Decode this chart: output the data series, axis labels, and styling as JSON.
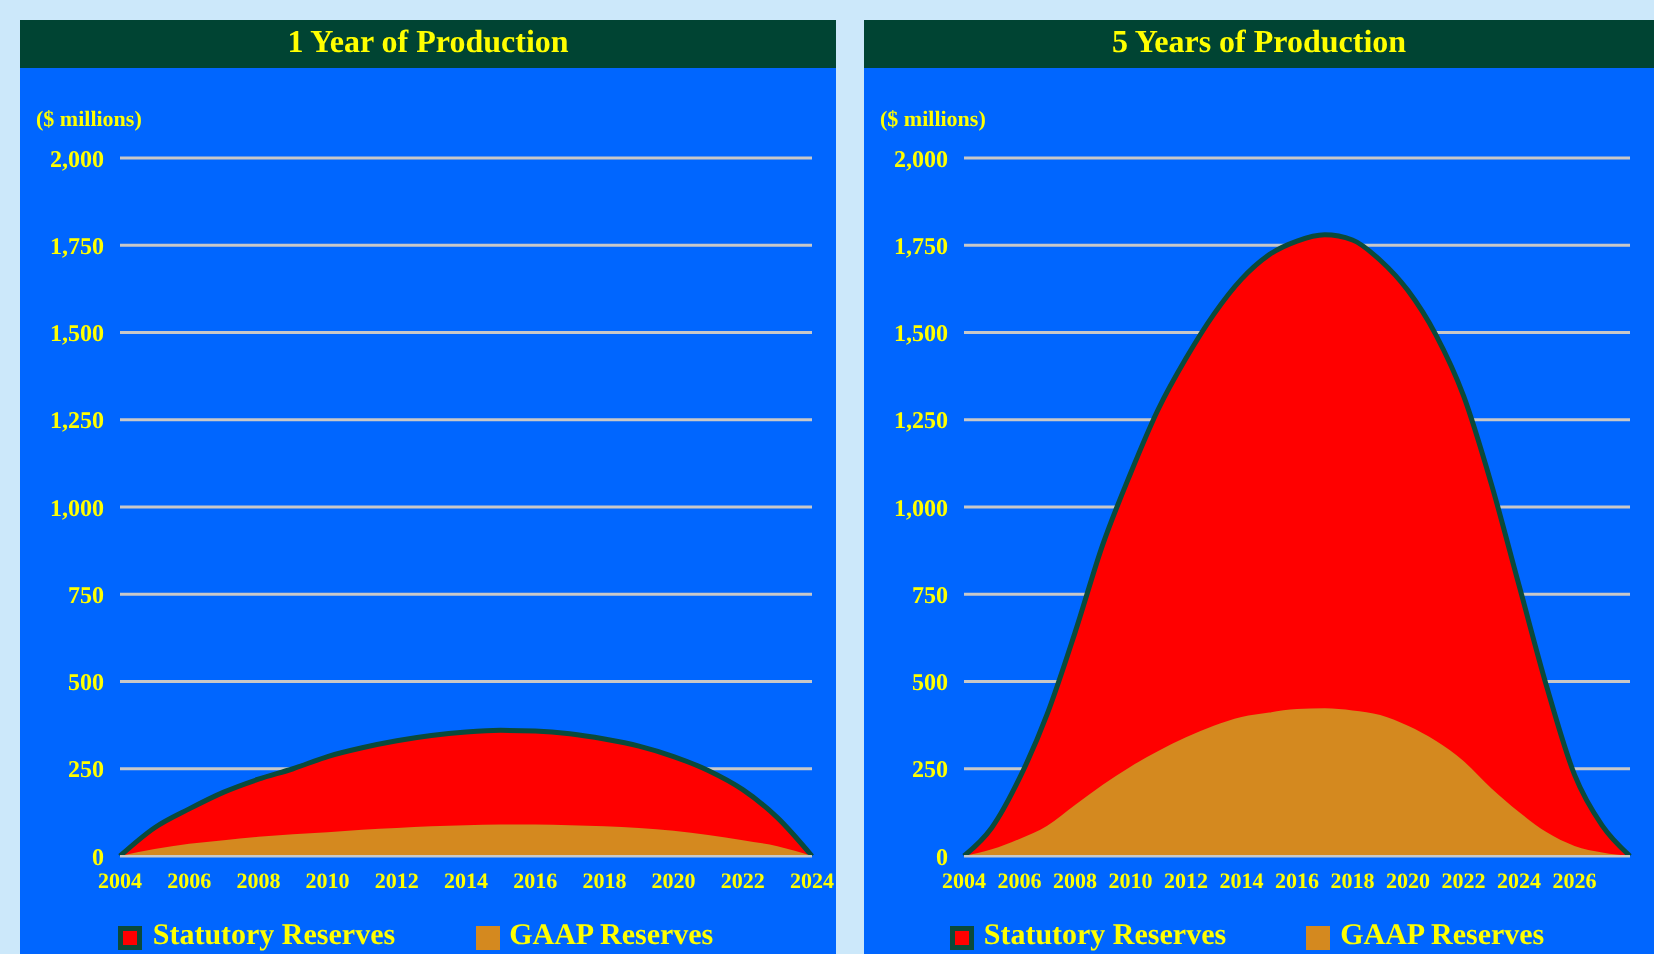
{
  "chart_data": [
    {
      "type": "area",
      "title": "1 Year of Production",
      "ylabel": "($ millions)",
      "categories": [
        "2004",
        null,
        "2006",
        null,
        "2008",
        null,
        "2010",
        null,
        "2012",
        null,
        "2014",
        null,
        "2016",
        null,
        "2018",
        null,
        "2020",
        null,
        "2022",
        null,
        "2024"
      ],
      "series": [
        {
          "name": "Statutory Reserves",
          "color": "#ff0000",
          "values": [
            0,
            81,
            135,
            183,
            220,
            250,
            285,
            310,
            330,
            345,
            355,
            360,
            358,
            350,
            335,
            315,
            285,
            245,
            190,
            110,
            0
          ]
        },
        {
          "name": "GAAP Reserves",
          "color": "#d4891f",
          "values": [
            0,
            20,
            35,
            45,
            55,
            62,
            68,
            75,
            80,
            85,
            88,
            90,
            90,
            88,
            85,
            80,
            72,
            60,
            45,
            28,
            0
          ]
        }
      ],
      "ylim": [
        0,
        2000
      ],
      "yticks": [
        0,
        250,
        500,
        750,
        {
          "value": 1000,
          "label": "1,000"
        },
        {
          "value": 1250,
          "label": "1,250"
        },
        {
          "value": 1500,
          "label": "1,500"
        },
        {
          "value": 1750,
          "label": "1,750"
        },
        {
          "value": 2000,
          "label": "2,000"
        }
      ],
      "grid": "y",
      "legend": "bottom"
    },
    {
      "type": "area",
      "title": "5 Years of Production",
      "ylabel": "($ millions)",
      "categories": [
        "2004",
        null,
        "2006",
        null,
        "2008",
        null,
        "2010",
        null,
        "2012",
        null,
        "2014",
        null,
        "2016",
        null,
        "2018",
        null,
        "2020",
        null,
        "2022",
        null,
        "2024",
        null,
        "2026",
        null,
        null
      ],
      "series": [
        {
          "name": "Statutory Reserves",
          "color": "#ff0000",
          "values": [
            0,
            81,
            223,
            407,
            640,
            892,
            1096,
            1280,
            1426,
            1552,
            1653,
            1723,
            1762,
            1780,
            1765,
            1707,
            1620,
            1494,
            1319,
            1067,
            776,
            485,
            233,
            87,
            0
          ]
        },
        {
          "name": "GAAP Reserves",
          "color": "#d4891f",
          "values": [
            0,
            19,
            49,
            87,
            146,
            204,
            256,
            301,
            340,
            373,
            398,
            411,
            421,
            423,
            417,
            404,
            373,
            330,
            272,
            194,
            126,
            68,
            29,
            10,
            0
          ]
        }
      ],
      "ylim": [
        0,
        2000
      ],
      "yticks": [
        0,
        250,
        500,
        750,
        {
          "value": 1000,
          "label": "1,000"
        },
        {
          "value": 1250,
          "label": "1,250"
        },
        {
          "value": 1500,
          "label": "1,500"
        },
        {
          "value": 1750,
          "label": "1,750"
        },
        {
          "value": 2000,
          "label": "2,000"
        }
      ],
      "grid": "y",
      "legend": "bottom"
    }
  ]
}
